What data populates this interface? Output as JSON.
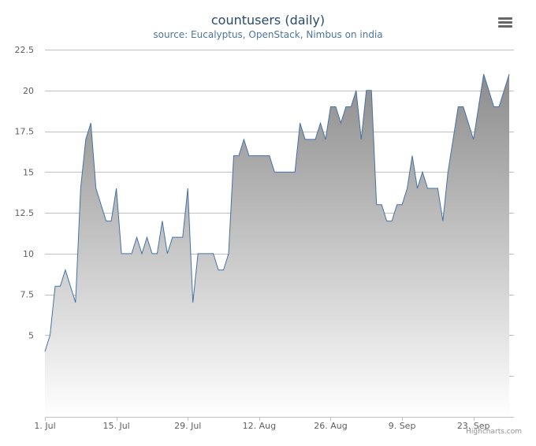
{
  "header": {
    "title": "countusers (daily)",
    "subtitle": "source: Eucalyptus, OpenStack, Nimbus on india"
  },
  "credits": "Highcharts.com",
  "menu": {
    "icon": "hamburger-menu-icon"
  },
  "colors": {
    "line": "#4572a7",
    "fill_top": "#8c8c8c",
    "fill_bottom": "#ffffff",
    "grid": "#c0c0c0",
    "title": "#274b6d",
    "subtitle": "#4d759e"
  },
  "chart_data": {
    "type": "area",
    "title": "countusers (daily)",
    "subtitle": "source: Eucalyptus, OpenStack, Nimbus on india",
    "xlabel": "",
    "ylabel": "",
    "x_start": "2013-07-01",
    "x_step_days": 1,
    "ylim": [
      0,
      22.5
    ],
    "y_ticks": [
      5,
      7.5,
      10,
      12.5,
      15,
      17.5,
      20,
      22.5
    ],
    "x_ticks": [
      {
        "label": "1. Jul",
        "day": 0
      },
      {
        "label": "15. Jul",
        "day": 14
      },
      {
        "label": "29. Jul",
        "day": 28
      },
      {
        "label": "12. Aug",
        "day": 42
      },
      {
        "label": "26. Aug",
        "day": 56
      },
      {
        "label": "9. Sep",
        "day": 70
      },
      {
        "label": "23. Sep",
        "day": 84
      }
    ],
    "grid": true,
    "legend": "none",
    "series": [
      {
        "values": [
          4,
          5,
          8,
          8,
          9,
          8,
          7,
          14,
          17,
          18,
          14,
          13,
          12,
          12,
          14,
          10,
          10,
          10,
          11,
          10,
          11,
          10,
          10,
          12,
          10,
          11,
          11,
          11,
          14,
          7,
          10,
          10,
          10,
          10,
          9,
          9,
          10,
          16,
          16,
          17,
          16,
          16,
          16,
          16,
          16,
          15,
          15,
          15,
          15,
          15,
          18,
          17,
          17,
          17,
          18,
          17,
          19,
          19,
          18,
          19,
          19,
          20,
          17,
          20,
          20,
          13,
          13,
          12,
          12,
          13,
          13,
          14,
          16,
          14,
          15,
          14,
          14,
          14,
          12,
          15,
          17,
          19,
          19,
          18,
          17,
          19,
          21,
          20,
          19,
          19,
          20,
          21
        ]
      }
    ]
  }
}
